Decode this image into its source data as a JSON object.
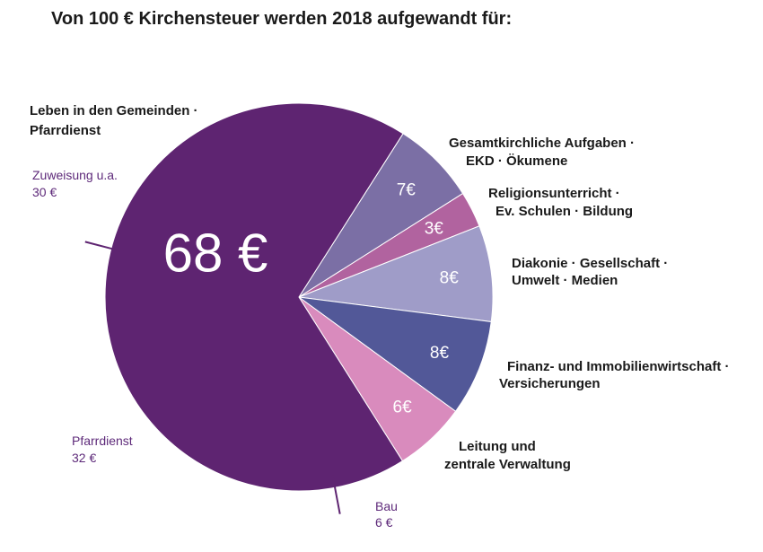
{
  "chart_data": {
    "type": "pie",
    "title": "Von 100 € Kirchensteuer werden 2018 aufgewandt für:",
    "unit": "€",
    "slices": [
      {
        "label_lines": [
          "Leben in den Gemeinden ·",
          "Pfarrdienst"
        ],
        "value": 68,
        "value_label": "68 €",
        "color": "#5e2471"
      },
      {
        "label_lines": [
          "Gesamtkirchliche Aufgaben ·",
          "EKD · Ökumene"
        ],
        "value": 7,
        "value_label": "7€",
        "color": "#7b6fa5"
      },
      {
        "label_lines": [
          "Religionsunterricht ·",
          "Ev. Schulen · Bildung"
        ],
        "value": 3,
        "value_label": "3€",
        "color": "#b1639f"
      },
      {
        "label_lines": [
          "Diakonie · Gesellschaft ·",
          "Umwelt · Medien"
        ],
        "value": 8,
        "value_label": "8€",
        "color": "#9f9cc8"
      },
      {
        "label_lines": [
          "Finanz- und Immobilienwirtschaft ·",
          "Versicherungen"
        ],
        "value": 8,
        "value_label": "8€",
        "color": "#525898"
      },
      {
        "label_lines": [
          "Leitung und",
          "zentrale Verwaltung"
        ],
        "value": 6,
        "value_label": "6€",
        "color": "#d98bbd"
      }
    ],
    "sub_breakdown": [
      {
        "label": "Zuweisung u.a.",
        "value_label": "30 €",
        "value": 30
      },
      {
        "label": "Pfarrdienst",
        "value_label": "32 €",
        "value": 32
      },
      {
        "label": "Bau",
        "value_label": "6 €",
        "value": 6
      }
    ]
  }
}
